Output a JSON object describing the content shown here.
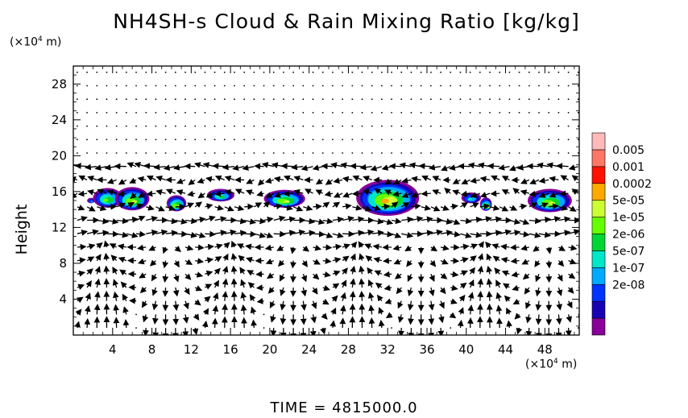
{
  "title": "NH4SH-s Cloud & Rain Mixing Ratio [kg/kg]",
  "y_unit_prefix": "(×10",
  "y_unit_exp": "4",
  "y_unit_suffix": " m)",
  "x_unit_prefix": "(×10",
  "x_unit_exp": "4",
  "x_unit_suffix": " m)",
  "ylabel": "Height",
  "time_label": "TIME = 4815000.0",
  "colors": {
    "levels": [
      "#880099",
      "#1a00b3",
      "#0033ff",
      "#00aaff",
      "#00e6c8",
      "#00d633",
      "#66ff00",
      "#ccff33",
      "#ffaa00",
      "#ff1100",
      "#ff7766",
      "#ffbbbb"
    ]
  },
  "chart_data": {
    "type": "heatmap",
    "title": "NH4SH-s Cloud & Rain Mixing Ratio [kg/kg]",
    "xlabel": "",
    "ylabel": "Height",
    "x_unit": "×10^4 m",
    "y_unit": "×10^4 m",
    "xlim": [
      0,
      51.5
    ],
    "ylim": [
      0,
      30
    ],
    "xticks": [
      4,
      8,
      12,
      16,
      20,
      24,
      28,
      32,
      36,
      40,
      44,
      48
    ],
    "yticks": [
      4,
      8,
      12,
      16,
      20,
      24,
      28
    ],
    "colorbar_labels": [
      "0.005",
      "0.001",
      "0.0002",
      "5e-05",
      "1e-05",
      "2e-06",
      "5e-07",
      "1e-07",
      "2e-08"
    ],
    "cloud_blobs": [
      {
        "x_center": 1.8,
        "y_center": 15.0,
        "width": 0.8,
        "height": 0.6,
        "peak_level": 3
      },
      {
        "x_center": 3.5,
        "y_center": 15.3,
        "width": 3.0,
        "height": 2.2,
        "peak_level": 6
      },
      {
        "x_center": 6.0,
        "y_center": 15.2,
        "width": 3.5,
        "height": 2.6,
        "peak_level": 7
      },
      {
        "x_center": 10.5,
        "y_center": 14.7,
        "width": 2.0,
        "height": 1.8,
        "peak_level": 7
      },
      {
        "x_center": 15.0,
        "y_center": 15.6,
        "width": 2.8,
        "height": 1.4,
        "peak_level": 5
      },
      {
        "x_center": 21.5,
        "y_center": 15.2,
        "width": 4.2,
        "height": 2.0,
        "peak_level": 7
      },
      {
        "x_center": 32.0,
        "y_center": 15.3,
        "width": 6.4,
        "height": 4.0,
        "peak_level": 8
      },
      {
        "x_center": 40.5,
        "y_center": 15.3,
        "width": 2.0,
        "height": 1.2,
        "peak_level": 4
      },
      {
        "x_center": 42.0,
        "y_center": 14.6,
        "width": 1.2,
        "height": 1.5,
        "peak_level": 7
      },
      {
        "x_center": 48.5,
        "y_center": 15.0,
        "width": 4.5,
        "height": 2.6,
        "peak_level": 7
      }
    ],
    "wind_vectors_shown": true
  }
}
